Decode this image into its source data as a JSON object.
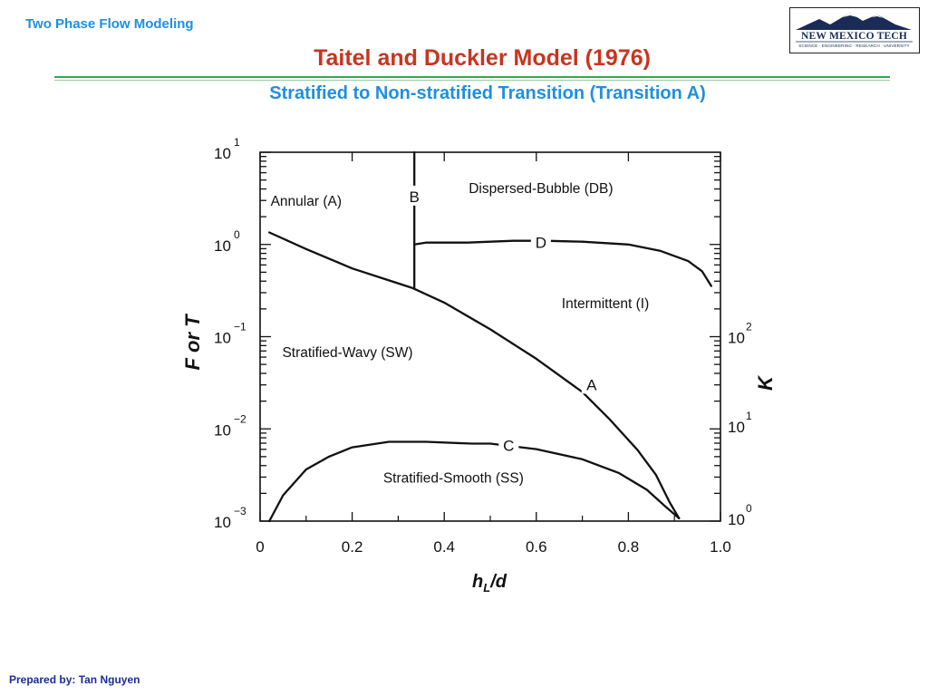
{
  "header": {
    "course": "Two Phase Flow Modeling",
    "title": "Taitel and Duckler Model (1976)",
    "subtitle": "Stratified to Non-stratified Transition (Transition A)"
  },
  "logo": {
    "name": "NEW MEXICO TECH",
    "tagline": "SCIENCE · ENGINEERING · RESEARCH · UNIVERSITY",
    "color": "#1a2b55"
  },
  "footer": {
    "author": "Prepared by: Tan Nguyen"
  },
  "chart_data": {
    "type": "line",
    "xlabel": "hL/d",
    "xlabel_main": "h",
    "xlabel_sub": "L",
    "xlabel_tail": "/d",
    "ylabel": "F or T",
    "y2label": "K",
    "xlim": [
      0,
      1.0
    ],
    "ylim": [
      -3,
      1
    ],
    "y_scale": "log",
    "x_ticks": [
      {
        "value": 0,
        "label": "0"
      },
      {
        "value": 0.2,
        "label": "0.2"
      },
      {
        "value": 0.4,
        "label": "0.4"
      },
      {
        "value": 0.6,
        "label": "0.6"
      },
      {
        "value": 0.8,
        "label": "0.8"
      },
      {
        "value": 1.0,
        "label": "1.0"
      }
    ],
    "y_ticks": [
      {
        "value": 1,
        "label": "10",
        "exp": "1"
      },
      {
        "value": 0,
        "label": "10",
        "exp": "0"
      },
      {
        "value": -1,
        "label": "10",
        "exp": "−1"
      },
      {
        "value": -2,
        "label": "10",
        "exp": "−2"
      },
      {
        "value": -3,
        "label": "10",
        "exp": "−3"
      }
    ],
    "y2_ticks": [
      {
        "value": -1,
        "label": "10",
        "exp": "2"
      },
      {
        "value": -1.97,
        "label": "10",
        "exp": "1"
      },
      {
        "value": -2.97,
        "label": "10",
        "exp": "0"
      }
    ],
    "curves": [
      {
        "label": "A",
        "label_at": [
          0.72,
          -1.52
        ],
        "points": [
          [
            0.02,
            0.13
          ],
          [
            0.1,
            -0.05
          ],
          [
            0.2,
            -0.26
          ],
          [
            0.28,
            -0.39
          ],
          [
            0.33,
            -0.47
          ],
          [
            0.4,
            -0.63
          ],
          [
            0.5,
            -0.92
          ],
          [
            0.6,
            -1.24
          ],
          [
            0.7,
            -1.6
          ],
          [
            0.76,
            -1.9
          ],
          [
            0.82,
            -2.23
          ],
          [
            0.86,
            -2.5
          ],
          [
            0.89,
            -2.8
          ],
          [
            0.91,
            -2.97
          ]
        ]
      },
      {
        "label": "B",
        "label_at": [
          0.335,
          0.52
        ],
        "points": [
          [
            0.335,
            1.0
          ],
          [
            0.335,
            -0.47
          ]
        ]
      },
      {
        "label": "D",
        "label_at": [
          0.61,
          0.02
        ],
        "points": [
          [
            0.335,
            0.0
          ],
          [
            0.36,
            0.02
          ],
          [
            0.45,
            0.02
          ],
          [
            0.55,
            0.04
          ],
          [
            0.62,
            0.04
          ],
          [
            0.7,
            0.03
          ],
          [
            0.8,
            0.0
          ],
          [
            0.87,
            -0.07
          ],
          [
            0.93,
            -0.18
          ],
          [
            0.96,
            -0.29
          ],
          [
            0.98,
            -0.45
          ]
        ]
      },
      {
        "label": "C",
        "label_at": [
          0.54,
          -2.18
        ],
        "points": [
          [
            0.02,
            -3.0
          ],
          [
            0.05,
            -2.72
          ],
          [
            0.1,
            -2.44
          ],
          [
            0.15,
            -2.3
          ],
          [
            0.2,
            -2.2
          ],
          [
            0.28,
            -2.14
          ],
          [
            0.36,
            -2.14
          ],
          [
            0.46,
            -2.16
          ],
          [
            0.5,
            -2.16
          ],
          [
            0.6,
            -2.22
          ],
          [
            0.7,
            -2.33
          ],
          [
            0.78,
            -2.48
          ],
          [
            0.84,
            -2.66
          ],
          [
            0.88,
            -2.84
          ],
          [
            0.91,
            -2.97
          ]
        ]
      }
    ],
    "regions": [
      {
        "label": "Annular (A)",
        "at": [
          0.1,
          0.42
        ]
      },
      {
        "label": "Dispersed-Bubble (DB)",
        "at": [
          0.61,
          0.56
        ]
      },
      {
        "label": "Intermittent (I)",
        "at": [
          0.75,
          -0.69
        ]
      },
      {
        "label": "Stratified-Wavy (SW)",
        "at": [
          0.19,
          -1.22
        ]
      },
      {
        "label": "Stratified-Smooth (SS)",
        "at": [
          0.42,
          -2.58
        ]
      }
    ],
    "grid": false
  }
}
